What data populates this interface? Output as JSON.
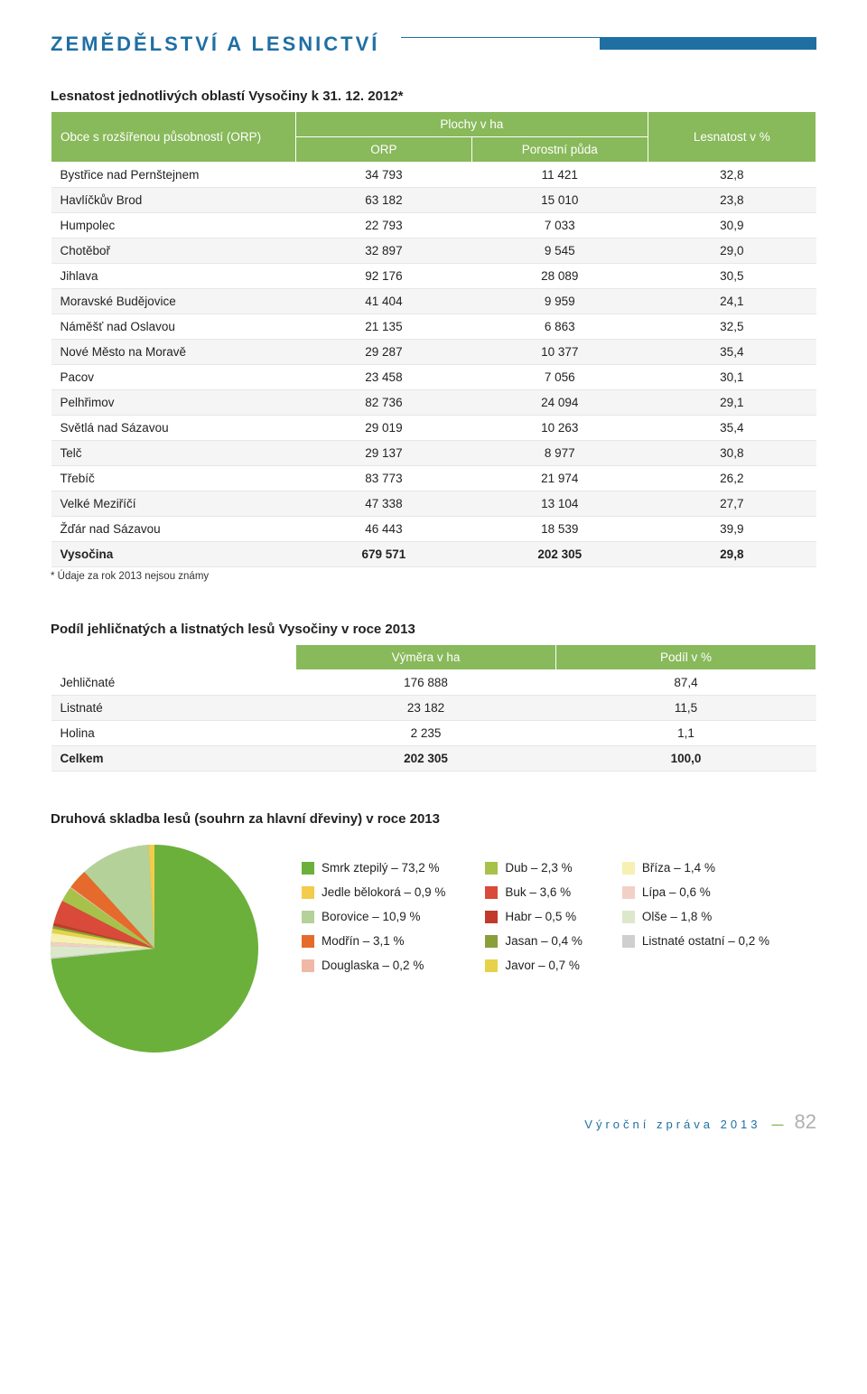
{
  "header": {
    "section_title": "ZEMĚDĚLSTVÍ A LESNICTVÍ",
    "accent_color": "#1f6fa3"
  },
  "table1": {
    "title": "Lesnatost jednotlivých oblastí Vysočiny k 31. 12. 2012*",
    "header_bg": "#88b95a",
    "col_orp_group": "Obce s rozšířenou působností (ORP)",
    "col_plochy": "Plochy v ha",
    "col_orp": "ORP",
    "col_porostni": "Porostní půda",
    "col_lesnatost": "Lesnatost v %",
    "rows": [
      {
        "name": "Bystřice nad Pernštejnem",
        "orp": "34 793",
        "por": "11 421",
        "pct": "32,8"
      },
      {
        "name": "Havlíčkův Brod",
        "orp": "63 182",
        "por": "15 010",
        "pct": "23,8"
      },
      {
        "name": "Humpolec",
        "orp": "22 793",
        "por": "7 033",
        "pct": "30,9"
      },
      {
        "name": "Chotěboř",
        "orp": "32 897",
        "por": "9 545",
        "pct": "29,0"
      },
      {
        "name": "Jihlava",
        "orp": "92 176",
        "por": "28 089",
        "pct": "30,5"
      },
      {
        "name": "Moravské Budějovice",
        "orp": "41 404",
        "por": "9 959",
        "pct": "24,1"
      },
      {
        "name": "Náměšť nad Oslavou",
        "orp": "21 135",
        "por": "6 863",
        "pct": "32,5"
      },
      {
        "name": "Nové Město na Moravě",
        "orp": "29 287",
        "por": "10 377",
        "pct": "35,4"
      },
      {
        "name": "Pacov",
        "orp": "23 458",
        "por": "7 056",
        "pct": "30,1"
      },
      {
        "name": "Pelhřimov",
        "orp": "82 736",
        "por": "24 094",
        "pct": "29,1"
      },
      {
        "name": "Světlá nad Sázavou",
        "orp": "29 019",
        "por": "10 263",
        "pct": "35,4"
      },
      {
        "name": "Telč",
        "orp": "29 137",
        "por": "8 977",
        "pct": "30,8"
      },
      {
        "name": "Třebíč",
        "orp": "83 773",
        "por": "21 974",
        "pct": "26,2"
      },
      {
        "name": "Velké Meziříčí",
        "orp": "47 338",
        "por": "13 104",
        "pct": "27,7"
      },
      {
        "name": "Žďár nad Sázavou",
        "orp": "46 443",
        "por": "18 539",
        "pct": "39,9"
      },
      {
        "name": "Vysočina",
        "orp": "679 571",
        "por": "202 305",
        "pct": "29,8"
      }
    ],
    "footnote": "* Údaje za rok 2013 nejsou známy"
  },
  "table2": {
    "title": "Podíl jehličnatých a listnatých lesů Vysočiny v roce 2013",
    "col_vymera": "Výměra v ha",
    "col_podil": "Podíl v %",
    "rows": [
      {
        "name": "Jehličnaté",
        "v": "176 888",
        "p": "87,4"
      },
      {
        "name": "Listnaté",
        "v": "23 182",
        "p": "11,5"
      },
      {
        "name": "Holina",
        "v": "2 235",
        "p": "1,1"
      },
      {
        "name": "Celkem",
        "v": "202 305",
        "p": "100,0"
      }
    ]
  },
  "pie": {
    "title": "Druhová skladba lesů (souhrn za hlavní dřeviny) v roce 2013",
    "slices": [
      {
        "label": "Smrk ztepilý – 73,2 %",
        "value": 73.2,
        "color": "#6bb03a"
      },
      {
        "label": "Jedle bělokorá – 0,9 %",
        "value": 0.9,
        "color": "#f2cc4a"
      },
      {
        "label": "Borovice – 10,9 %",
        "value": 10.9,
        "color": "#b5d19a"
      },
      {
        "label": "Modřín – 3,1 %",
        "value": 3.1,
        "color": "#e56a2b"
      },
      {
        "label": "Douglaska – 0,2 %",
        "value": 0.2,
        "color": "#f0b9a6"
      },
      {
        "label": "Dub – 2,3 %",
        "value": 2.3,
        "color": "#a6c24a"
      },
      {
        "label": "Buk – 3,6 %",
        "value": 3.6,
        "color": "#d94a3a"
      },
      {
        "label": "Habr – 0,5 %",
        "value": 0.5,
        "color": "#c13a2b"
      },
      {
        "label": "Jasan – 0,4 %",
        "value": 0.4,
        "color": "#8a9e3a"
      },
      {
        "label": "Javor – 0,7 %",
        "value": 0.7,
        "color": "#e6d24a"
      },
      {
        "label": "Bříza – 1,4 %",
        "value": 1.4,
        "color": "#f6f0b3"
      },
      {
        "label": "Lípa – 0,6 %",
        "value": 0.6,
        "color": "#f2cfc7"
      },
      {
        "label": "Olše – 1,8 %",
        "value": 1.8,
        "color": "#dce8cc"
      },
      {
        "label": "Listnaté ostatní – 0,2 %",
        "value": 0.2,
        "color": "#cfcfcf"
      }
    ],
    "legend_columns": [
      [
        0,
        1,
        2,
        3,
        4
      ],
      [
        5,
        6,
        7,
        8,
        9
      ],
      [
        10,
        11,
        12,
        13
      ]
    ]
  },
  "footer": {
    "text": "Výroční zpráva 2013",
    "page": "82"
  }
}
